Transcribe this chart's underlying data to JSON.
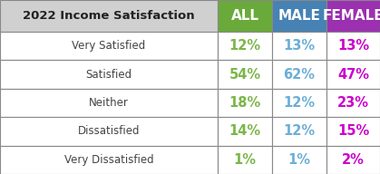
{
  "title": "2022 Income Satisfaction",
  "col_headers": [
    "ALL",
    "MALE",
    "FEMALE"
  ],
  "col_header_bg": [
    "#6aaa3a",
    "#4682b4",
    "#9b30b0"
  ],
  "row_labels": [
    "Very Satisfied",
    "Satisfied",
    "Neither",
    "Dissatisfied",
    "Very Dissatisfied"
  ],
  "data": [
    [
      "12%",
      "13%",
      "13%"
    ],
    [
      "54%",
      "62%",
      "47%"
    ],
    [
      "18%",
      "12%",
      "23%"
    ],
    [
      "14%",
      "12%",
      "15%"
    ],
    [
      "1%",
      "1%",
      "2%"
    ]
  ],
  "data_colors": [
    "#7ab648",
    "#6baed6",
    "#cc00cc"
  ],
  "header_bg_color": "#d0d0d0",
  "title_color": "#222222",
  "row_label_color": "#444444",
  "grid_color": "#888888",
  "fig_bg": "#ffffff",
  "figw": 4.19,
  "figh": 1.92,
  "dpi": 100
}
